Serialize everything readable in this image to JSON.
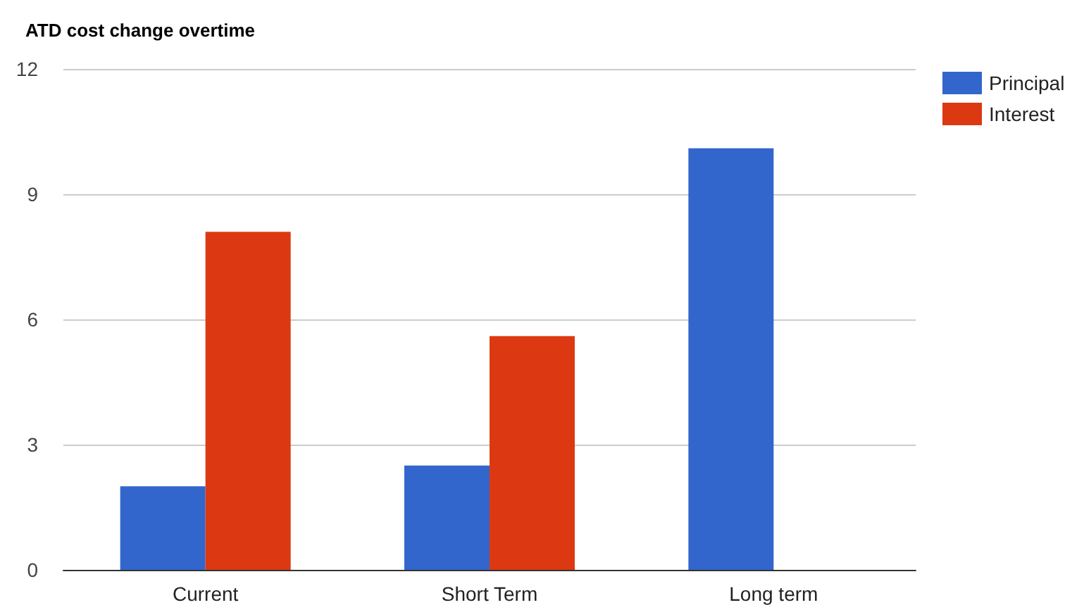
{
  "chart_data": {
    "type": "bar",
    "title": "ATD cost change overtime",
    "categories": [
      "Current",
      "Short Term",
      "Long term"
    ],
    "series": [
      {
        "name": "Principal",
        "color": "#3366cc",
        "values": [
          2.0,
          2.5,
          10.1
        ]
      },
      {
        "name": "Interest",
        "color": "#dc3912",
        "values": [
          8.1,
          5.6,
          0
        ]
      }
    ],
    "ylim": [
      0,
      12
    ],
    "yticks": [
      0,
      3,
      6,
      9,
      12
    ],
    "grid": "y",
    "legend": "right"
  }
}
